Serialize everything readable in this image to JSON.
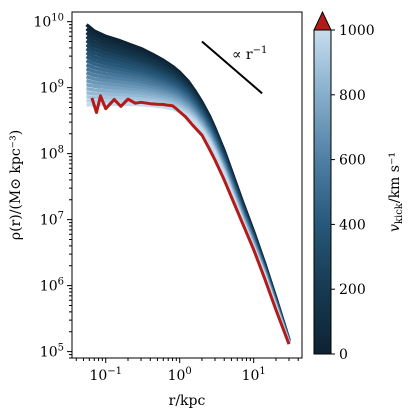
{
  "chart_data": {
    "type": "line",
    "xlabel": "r/kpc",
    "ylabel": "ρ(r)/(M⊙ kpc⁻³)",
    "x_scale": "log",
    "y_scale": "log",
    "xlim": [
      0.035,
      45
    ],
    "ylim": [
      80000,
      14000000000
    ],
    "x_ticks": [
      {
        "value": 0.1,
        "base": "10",
        "exp": "−1"
      },
      {
        "value": 1,
        "base": "10",
        "exp": "0"
      },
      {
        "value": 10,
        "base": "10",
        "exp": "1"
      }
    ],
    "y_ticks": [
      {
        "value": 100000,
        "base": "10",
        "exp": "5"
      },
      {
        "value": 1000000,
        "base": "10",
        "exp": "6"
      },
      {
        "value": 10000000,
        "base": "10",
        "exp": "7"
      },
      {
        "value": 100000000,
        "base": "10",
        "exp": "8"
      },
      {
        "value": 1000000000,
        "base": "10",
        "exp": "9"
      },
      {
        "value": 10000000000,
        "base": "10",
        "exp": "10"
      }
    ],
    "grid": false,
    "annotation": {
      "text": "∝ r⁻¹",
      "base": "∝ r",
      "exp": "−1",
      "slope_line": {
        "x": [
          2.0,
          13.0
        ],
        "y": [
          5000000000,
          820000000
        ]
      }
    },
    "family": {
      "description_of_encoding": "profiles coloured by kick velocity",
      "kick_velocities": [
        0,
        50,
        100,
        150,
        200,
        250,
        300,
        350,
        400,
        450,
        500,
        550,
        600,
        650,
        700,
        750,
        800,
        850,
        900,
        950,
        1000
      ],
      "x": [
        0.055,
        0.07,
        0.1,
        0.15,
        0.2,
        0.3,
        0.45,
        0.6,
        0.8,
        1.0,
        1.3,
        1.6,
        2.0,
        2.5,
        3.0,
        4.0,
        5.0,
        7.0,
        10.0,
        14.0,
        20.0,
        30.0
      ],
      "y_at_vmin": [
        9000000000,
        7200000000,
        6000000000,
        5200000000,
        4600000000,
        3900000000,
        3100000000,
        2600000000,
        2100000000,
        1700000000,
        1250000000,
        900000000,
        600000000,
        380000000,
        240000000,
        110000000,
        55000000,
        19000000,
        6500000,
        2200000,
        650000,
        150000
      ],
      "y_at_vmax": [
        550000000,
        550000000,
        560000000,
        560000000,
        560000000,
        550000000,
        530000000,
        510000000,
        480000000,
        440000000,
        370000000,
        300000000,
        220000000,
        150000000,
        100000000,
        48000000,
        25000000,
        9500000,
        3600000,
        1400000,
        450000,
        130000
      ]
    },
    "series": [
      {
        "name": "",
        "color": "#b31b1b",
        "x": [
          0.065,
          0.075,
          0.085,
          0.1,
          0.13,
          0.16,
          0.2,
          0.25,
          0.3,
          0.4,
          0.5,
          0.6,
          0.7,
          0.8,
          0.9,
          1.0,
          1.2,
          1.5,
          2.0,
          2.5,
          3.0,
          4.0,
          5.0,
          7.0,
          10.0,
          14.0,
          20.0,
          30.0
        ],
        "y": [
          700000000,
          420000000,
          750000000,
          480000000,
          660000000,
          520000000,
          670000000,
          580000000,
          600000000,
          570000000,
          560000000,
          555000000,
          540000000,
          530000000,
          480000000,
          430000000,
          360000000,
          270000000,
          190000000,
          120000000,
          80000000,
          40000000,
          22000000,
          9000000,
          3500000,
          1300000,
          430000,
          130000
        ]
      }
    ],
    "colorbar": {
      "label_main": "v",
      "label_sub": "kick",
      "label_unit": "/km s⁻¹",
      "min": 0,
      "max": 1000,
      "ticks": [
        0,
        200,
        400,
        600,
        800,
        1000
      ],
      "extend": "max",
      "extend_color": "#b31b1b",
      "colors": [
        "#0d2233",
        "#163a52",
        "#27587a",
        "#4f7fa3",
        "#86aecb",
        "#c7ddef"
      ]
    }
  }
}
